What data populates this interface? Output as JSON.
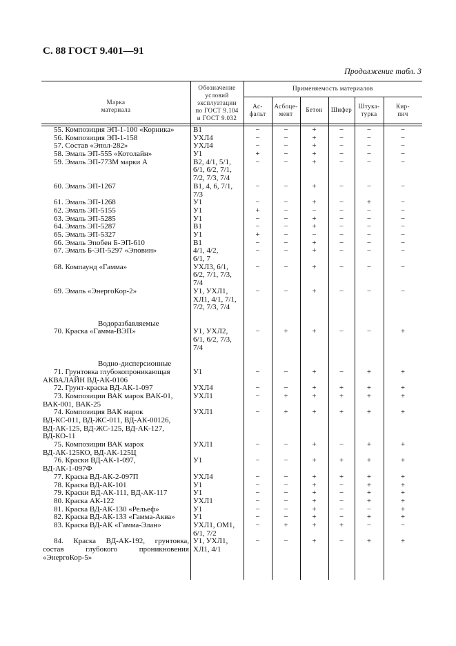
{
  "page_title": "С. 88 ГОСТ 9.401—91",
  "continuation": "Продолжение табл. 3",
  "header": {
    "col_name": [
      "Марка",
      "материала"
    ],
    "col_designation": [
      "Обозначение",
      "условий",
      "эксплуатации",
      "по ГОСТ 9.104",
      "и ГОСТ 9.032"
    ],
    "applicability": "Применяемость материалов",
    "materials": [
      [
        "Ас-",
        "фальт"
      ],
      [
        "Асбоце-",
        "мент"
      ],
      [
        "Бетон"
      ],
      [
        "Шифер"
      ],
      [
        "Штука-",
        "турка"
      ],
      [
        "Кир-",
        "пич"
      ]
    ]
  },
  "rows": [
    {
      "name": [
        "55. Композиция ЭП-1-100 «Корника»"
      ],
      "desig": [
        "В1"
      ],
      "marks": [
        "−",
        "−",
        "+",
        "−",
        "−",
        "−"
      ]
    },
    {
      "name": [
        "56. Композиция ЭП-1-158"
      ],
      "desig": [
        "УХЛ4"
      ],
      "marks": [
        "−",
        "−",
        "+",
        "−",
        "−",
        "−"
      ]
    },
    {
      "name": [
        "57. Состав «Эпол-282»"
      ],
      "desig": [
        "УХЛ4"
      ],
      "marks": [
        "−",
        "−",
        "+",
        "−",
        "−",
        "−"
      ]
    },
    {
      "name": [
        "58. Эмаль ЭП-555 «Котолайн»"
      ],
      "desig": [
        "У1"
      ],
      "marks": [
        "+",
        "−",
        "+",
        "−",
        "−",
        "−"
      ]
    },
    {
      "name": [
        "59. Эмаль ЭП-773М марки А"
      ],
      "desig": [
        "В2, 4/1, 5/1,",
        "6/1, 6/2, 7/1,",
        "7/2, 7/3, 7/4"
      ],
      "marks": [
        "−",
        "−",
        "+",
        "−",
        "−",
        "−"
      ]
    },
    {
      "name": [
        "60. Эмаль ЭП-1267"
      ],
      "desig": [
        "В1, 4, 6, 7/1,",
        "7/3"
      ],
      "marks": [
        "−",
        "−",
        "+",
        "−",
        "−",
        "−"
      ]
    },
    {
      "name": [
        "61. Эмаль ЭП-1268"
      ],
      "desig": [
        "У1"
      ],
      "marks": [
        "−",
        "−",
        "+",
        "−",
        "+",
        "−"
      ]
    },
    {
      "name": [
        "62. Эмаль ЭП-5155"
      ],
      "desig": [
        "У1"
      ],
      "marks": [
        "+",
        "−",
        "−",
        "−",
        "−",
        "−"
      ]
    },
    {
      "name": [
        "63. Эмаль ЭП-5285"
      ],
      "desig": [
        "У1"
      ],
      "marks": [
        "−",
        "−",
        "+",
        "−",
        "−",
        "−"
      ]
    },
    {
      "name": [
        "64. Эмаль ЭП-5287"
      ],
      "desig": [
        "В1"
      ],
      "marks": [
        "−",
        "−",
        "+",
        "−",
        "−",
        "−"
      ]
    },
    {
      "name": [
        "65. Эмаль ЭП-5327"
      ],
      "desig": [
        "У1"
      ],
      "marks": [
        "+",
        "−",
        "−",
        "−",
        "−",
        "−"
      ]
    },
    {
      "name": [
        "66. Эмаль Эпобен Б-ЭП-610"
      ],
      "desig": [
        "В1"
      ],
      "marks": [
        "−",
        "−",
        "+",
        "−",
        "−",
        "−"
      ]
    },
    {
      "name": [
        "67. Эмаль Б-ЭП-5297 «Эповин»"
      ],
      "desig": [
        "4/1, 4/2,",
        "6/1, 7"
      ],
      "marks": [
        "−",
        "−",
        "+",
        "−",
        "−",
        "−"
      ]
    },
    {
      "name": [
        "68. Компаунд «Гамма»"
      ],
      "desig": [
        "УХЛ3, 6/1,",
        "6/2, 7/1, 7/3,",
        "7/4"
      ],
      "marks": [
        "−",
        "−",
        "+",
        "−",
        "−",
        "−"
      ]
    },
    {
      "name": [
        "69. Эмаль «ЭнергоКор-2»"
      ],
      "desig": [
        "У1, УХЛ1,",
        "ХЛ1, 4/1, 7/1,",
        "7/2, 7/3, 7/4"
      ],
      "marks": [
        "−",
        "−",
        "+",
        "−",
        "−",
        "−"
      ]
    },
    {
      "section": "Водоразбавляемые"
    },
    {
      "name": [
        "70. Краска «Гамма-ВЭП»"
      ],
      "desig": [
        "У1, УХЛ2,",
        "6/1, 6/2, 7/3,",
        "7/4"
      ],
      "marks": [
        "−",
        "+",
        "+",
        "−",
        "−",
        "+"
      ]
    },
    {
      "section": "Водно-дисперсионные"
    },
    {
      "name": [
        "71. Грунтовка глубокопроникающая",
        "АКВАЛАЙН ВД-АК-0106"
      ],
      "desig": [
        "У1"
      ],
      "marks": [
        "−",
        "−",
        "+",
        "−",
        "+",
        "+"
      ]
    },
    {
      "name": [
        "72. Грунт-краска ВД-АК-1-097"
      ],
      "desig": [
        "УХЛ4"
      ],
      "marks": [
        "−",
        "−",
        "+",
        "+",
        "+",
        "+"
      ]
    },
    {
      "name": [
        "73. Композиции ВАК марок ВАК-01,",
        "ВАК-001, ВАК-25"
      ],
      "desig": [
        "УХЛ1"
      ],
      "marks": [
        "−",
        "+",
        "+",
        "+",
        "+",
        "+"
      ]
    },
    {
      "name": [
        "74. Композиция  ВАК марок",
        "ВД-КС-011, ВД-ЖС-011, ВД-АК-00126,",
        "ВД-АК-125, ВД-ЖС-125, ВД-АК-127,",
        "ВД-КО-11"
      ],
      "desig": [
        "УХЛ1"
      ],
      "marks": [
        "−",
        "+",
        "+",
        "+",
        "+",
        "+"
      ]
    },
    {
      "name": [
        "75. Композиции ВАК марок",
        "ВД-АК-125КО, ВД-АК-125Ц"
      ],
      "desig": [
        "УХЛ1"
      ],
      "marks": [
        "−",
        "−",
        "+",
        "−",
        "+",
        "+"
      ]
    },
    {
      "name": [
        "76. Краски ВД-АК-1-097,",
        "ВД-АК-1-097Ф"
      ],
      "desig": [
        "У1"
      ],
      "marks": [
        "−",
        "−",
        "+",
        "+",
        "+",
        "+"
      ]
    },
    {
      "name": [
        "77. Краска ВД-АК-2-097П"
      ],
      "desig": [
        "УХЛ4"
      ],
      "marks": [
        "−",
        "−",
        "+",
        "+",
        "+",
        "+"
      ]
    },
    {
      "name": [
        "78. Краска ВД-АК-101"
      ],
      "desig": [
        "У1"
      ],
      "marks": [
        "−",
        "−",
        "+",
        "−",
        "+",
        "+"
      ]
    },
    {
      "name": [
        "79. Краски ВД-АК-111, ВД-АК-117"
      ],
      "desig": [
        "У1"
      ],
      "marks": [
        "−",
        "−",
        "+",
        "−",
        "+",
        "+"
      ]
    },
    {
      "name": [
        "80. Краска АК-122"
      ],
      "desig": [
        "УХЛ1"
      ],
      "marks": [
        "−",
        "−",
        "+",
        "−",
        "+",
        "+"
      ]
    },
    {
      "name": [
        "81. Краска ВД-АК-130 «Рельеф»"
      ],
      "desig": [
        "У1"
      ],
      "marks": [
        "−",
        "−",
        "+",
        "−",
        "−",
        "+"
      ]
    },
    {
      "name": [
        "82. Краска ВД-АК-133 «Гамма-Аква»"
      ],
      "desig": [
        "У1"
      ],
      "marks": [
        "−",
        "−",
        "+",
        "−",
        "+",
        "+"
      ]
    },
    {
      "name": [
        "83. Краска ВД-АК «Гамма-Элан»"
      ],
      "desig": [
        "УХЛ1, ОМ1,",
        "6/1, 7/2"
      ],
      "marks": [
        "−",
        "+",
        "+",
        "+",
        "−",
        "−"
      ]
    },
    {
      "name": [
        "84. Краска  ВД-АК-192,  грунтовка,",
        "состав  глубокого  проникновения",
        "«ЭнергоКор-5»"
      ],
      "desig": [
        "У1, УХЛ1,",
        "ХЛ1, 4/1"
      ],
      "marks": [
        "−",
        "−",
        "+",
        "−",
        "+",
        "+"
      ],
      "justify": true
    }
  ]
}
